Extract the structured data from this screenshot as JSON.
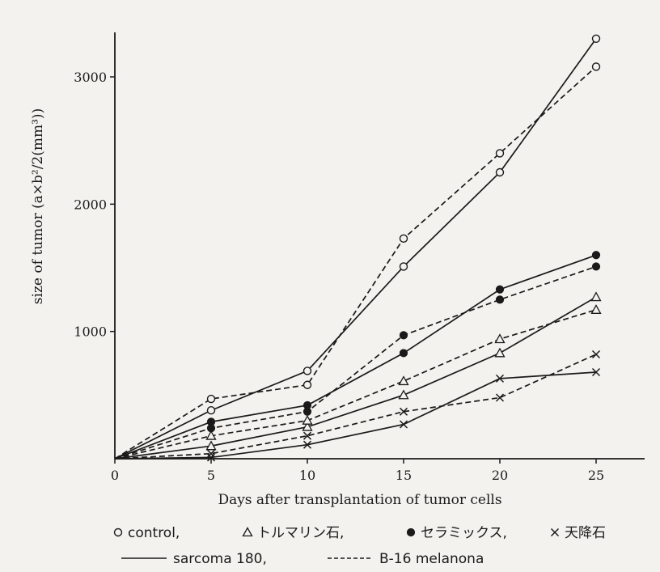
{
  "chart_data": {
    "type": "line",
    "title": "",
    "xlabel": "Days after transplantation of tumor cells",
    "ylabel": "size of tumor (a×b²/2(mm³))",
    "xlim": [
      0,
      27.5
    ],
    "ylim": [
      0,
      3400
    ],
    "x_ticks": [
      0,
      5,
      10,
      15,
      20,
      25
    ],
    "y_ticks": [
      1000,
      2000,
      3000
    ],
    "grid": false,
    "x": [
      0,
      5,
      10,
      15,
      20,
      25
    ],
    "series": [
      {
        "marker": "open-circle",
        "line": "solid",
        "values": [
          0,
          380,
          690,
          1510,
          2250,
          3300
        ]
      },
      {
        "marker": "open-circle",
        "line": "dashed",
        "values": [
          0,
          470,
          580,
          1730,
          2400,
          3080
        ]
      },
      {
        "marker": "filled-circle",
        "line": "solid",
        "values": [
          0,
          290,
          420,
          830,
          1330,
          1600
        ]
      },
      {
        "marker": "filled-circle",
        "line": "dashed",
        "values": [
          0,
          240,
          370,
          970,
          1250,
          1510
        ]
      },
      {
        "marker": "triangle",
        "line": "solid",
        "values": [
          0,
          100,
          250,
          500,
          830,
          1270
        ]
      },
      {
        "marker": "triangle",
        "line": "dashed",
        "values": [
          0,
          180,
          300,
          610,
          940,
          1170
        ]
      },
      {
        "marker": "cross",
        "line": "solid",
        "values": [
          0,
          10,
          110,
          270,
          630,
          680
        ]
      },
      {
        "marker": "cross",
        "line": "dashed",
        "values": [
          0,
          40,
          180,
          370,
          480,
          820
        ]
      }
    ],
    "legend": {
      "row1": [
        {
          "marker": "open-circle",
          "label": "control,"
        },
        {
          "marker": "triangle",
          "label": "トルマリン石,"
        },
        {
          "marker": "filled-circle",
          "label": "セラミックス,"
        },
        {
          "marker": "cross",
          "label": "天降石"
        }
      ],
      "row2": [
        {
          "line": "solid",
          "label": "sarcoma 180,"
        },
        {
          "line": "dashed",
          "label": "B-16 melanona"
        }
      ]
    }
  }
}
